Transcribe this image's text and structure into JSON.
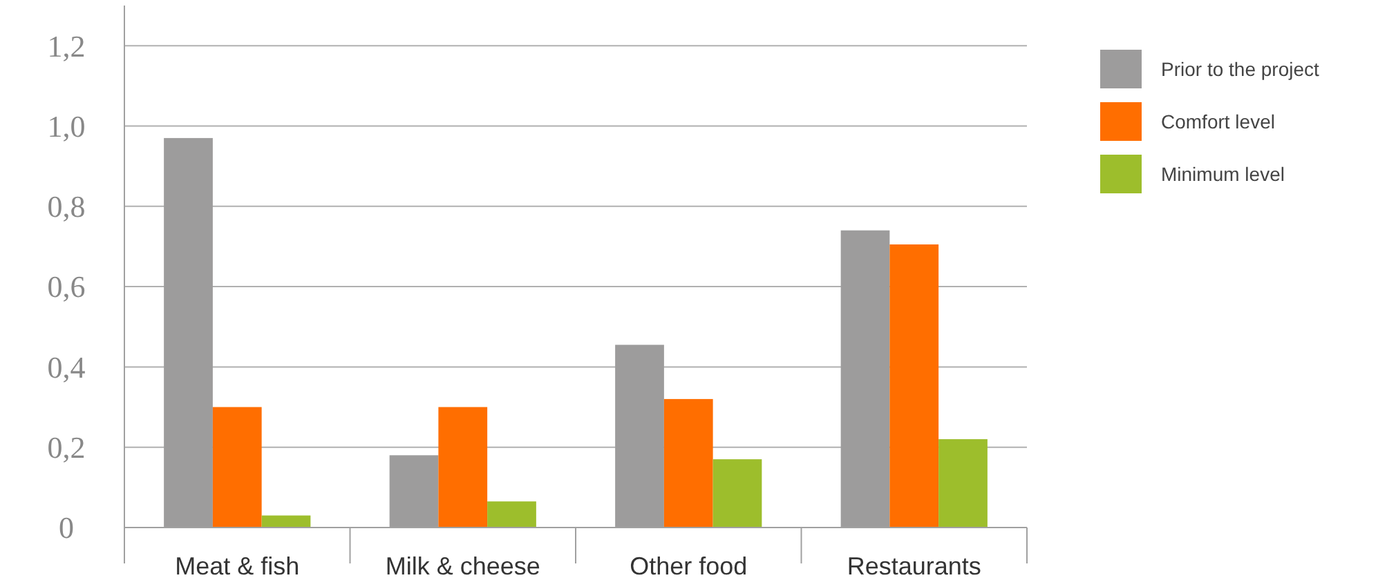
{
  "chart_data": {
    "type": "bar",
    "categories": [
      "Meat & fish",
      "Milk & cheese",
      "Other food",
      "Restaurants"
    ],
    "series": [
      {
        "name": "Prior to the project",
        "color": "#9d9c9c",
        "values": [
          0.97,
          0.18,
          0.455,
          0.74
        ]
      },
      {
        "name": "Comfort level",
        "color": "#ff6e00",
        "values": [
          0.3,
          0.3,
          0.32,
          0.705
        ]
      },
      {
        "name": "Minimum level",
        "color": "#9dbe2c",
        "values": [
          0.03,
          0.065,
          0.17,
          0.22
        ]
      }
    ],
    "ylim": [
      0,
      1.3
    ],
    "yticks": [
      0,
      {
        "value": 0.2,
        "label": "0,2"
      },
      {
        "value": 0.4,
        "label": "0,4"
      },
      {
        "value": 0.6,
        "label": "0,6"
      },
      {
        "value": 0.8,
        "label": "0,8"
      },
      {
        "value": 1.0,
        "label": "1,0"
      },
      {
        "value": 1.2,
        "label": "1,2"
      }
    ],
    "grid": "y",
    "legend": "right"
  }
}
